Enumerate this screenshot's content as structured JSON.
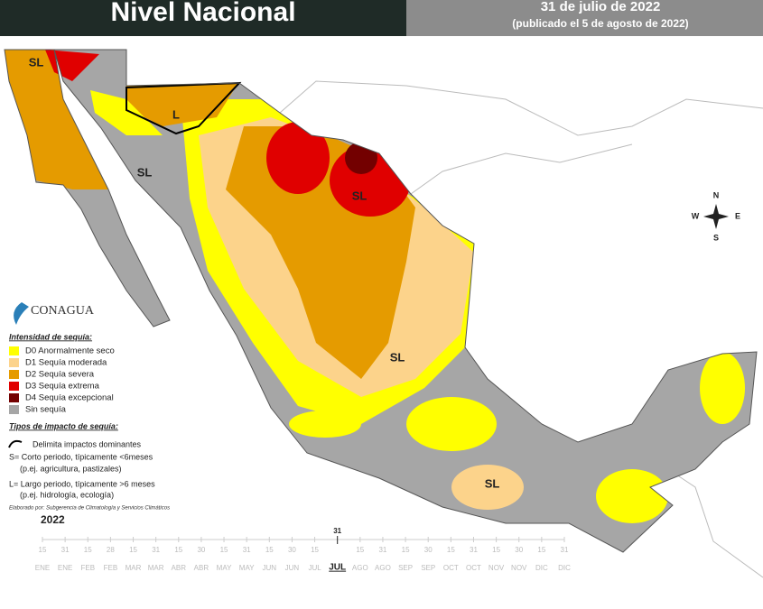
{
  "header": {
    "title": "Nivel Nacional",
    "date": "31 de julio de 2022",
    "published": "(publicado el 5 de agosto de 2022)"
  },
  "map": {
    "labels": [
      "SL",
      "L",
      "SL",
      "SL",
      "SL",
      "SL"
    ],
    "compass": [
      "N",
      "S",
      "E",
      "W"
    ]
  },
  "logo": {
    "name": "CONAGUA"
  },
  "legend": {
    "intensity_title": "Intensidad de sequía:",
    "intensity": [
      {
        "label": "D0 Anormalmente seco",
        "color": "#ffff00"
      },
      {
        "label": "D1 Sequía moderada",
        "color": "#fcd38b"
      },
      {
        "label": "D2 Sequía severa",
        "color": "#e59b00"
      },
      {
        "label": "D3 Sequía extrema",
        "color": "#e00000"
      },
      {
        "label": "D4 Sequía excepcional",
        "color": "#730000"
      },
      {
        "label": "Sin sequía",
        "color": "#a6a6a6"
      }
    ],
    "impact_title": "Tipos de impacto de sequía:",
    "impact": [
      "Delimita impactos dominantes",
      "S= Corto periodo, típicamente <6meses",
      "(p.ej. agricultura, pastizales)",
      "L= Largo periodo, típicamente >6 meses",
      "(p.ej. hidrología, ecología)"
    ]
  },
  "credit": "Elaborado por: Subgerencia de Climatología y Servicios Climáticos",
  "timeline": {
    "year": "2022",
    "ticks": [
      {
        "day": "15",
        "month": "ENE"
      },
      {
        "day": "31",
        "month": "ENE"
      },
      {
        "day": "15",
        "month": "FEB"
      },
      {
        "day": "28",
        "month": "FEB"
      },
      {
        "day": "15",
        "month": "MAR"
      },
      {
        "day": "31",
        "month": "MAR"
      },
      {
        "day": "15",
        "month": "ABR"
      },
      {
        "day": "30",
        "month": "ABR"
      },
      {
        "day": "15",
        "month": "MAY"
      },
      {
        "day": "31",
        "month": "MAY"
      },
      {
        "day": "15",
        "month": "JUN"
      },
      {
        "day": "30",
        "month": "JUN"
      },
      {
        "day": "15",
        "month": "JUL"
      },
      {
        "day": "31",
        "month": "JUL",
        "highlight": true
      },
      {
        "day": "15",
        "month": "AGO"
      },
      {
        "day": "31",
        "month": "AGO"
      },
      {
        "day": "15",
        "month": "SEP"
      },
      {
        "day": "30",
        "month": "SEP"
      },
      {
        "day": "15",
        "month": "OCT"
      },
      {
        "day": "31",
        "month": "OCT"
      },
      {
        "day": "15",
        "month": "NOV"
      },
      {
        "day": "30",
        "month": "NOV"
      },
      {
        "day": "15",
        "month": "DIC"
      },
      {
        "day": "31",
        "month": "DIC"
      }
    ]
  }
}
